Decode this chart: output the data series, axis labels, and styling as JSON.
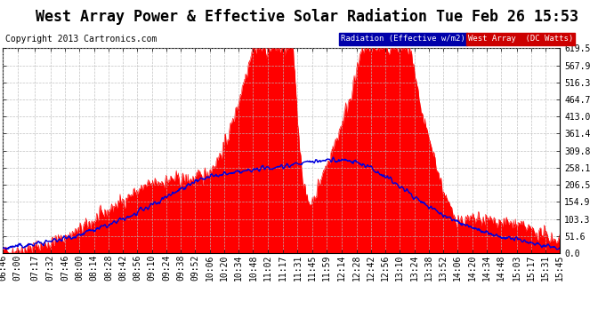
{
  "title": "West Array Power & Effective Solar Radiation Tue Feb 26 15:53",
  "copyright": "Copyright 2013 Cartronics.com",
  "legend_rad_label": "Radiation (Effective w/m2)",
  "legend_wa_label": "West Array  (DC Watts)",
  "bg_color": "#ffffff",
  "y_max": 619.5,
  "y_min": 0.0,
  "y_ticks": [
    0.0,
    51.6,
    103.3,
    154.9,
    206.5,
    258.1,
    309.8,
    361.4,
    413.0,
    464.7,
    516.3,
    567.9,
    619.5
  ],
  "x_labels": [
    "06:46",
    "07:00",
    "07:17",
    "07:32",
    "07:46",
    "08:00",
    "08:14",
    "08:28",
    "08:42",
    "08:56",
    "09:10",
    "09:24",
    "09:38",
    "09:52",
    "10:06",
    "10:20",
    "10:34",
    "10:48",
    "11:02",
    "11:17",
    "11:31",
    "11:45",
    "11:59",
    "12:14",
    "12:28",
    "12:42",
    "12:56",
    "13:10",
    "13:24",
    "13:38",
    "13:52",
    "14:06",
    "14:20",
    "14:34",
    "14:48",
    "15:03",
    "15:17",
    "15:31",
    "15:45"
  ],
  "fill_color": "#ff0000",
  "line_color": "#0000dd",
  "grid_color": "#bbbbbb",
  "title_fontsize": 12,
  "tick_fontsize": 7,
  "copyright_fontsize": 7,
  "legend_rad_bg": "#0000aa",
  "legend_wa_bg": "#cc0000"
}
